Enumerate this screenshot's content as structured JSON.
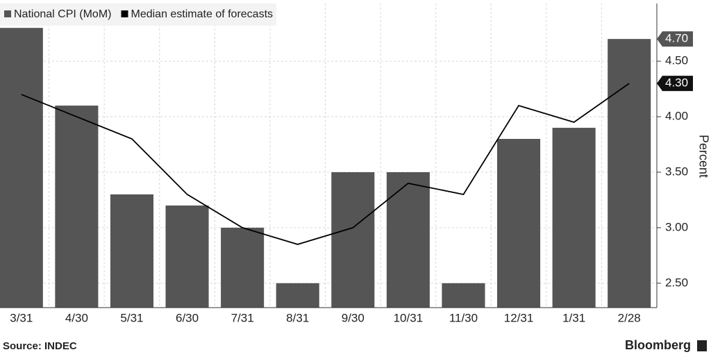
{
  "chart_data": {
    "type": "bar_line",
    "categories": [
      "3/31",
      "4/30",
      "5/31",
      "6/30",
      "7/31",
      "8/31",
      "9/30",
      "10/31",
      "11/30",
      "12/31",
      "1/31",
      "2/28"
    ],
    "series": [
      {
        "name": "National CPI (MoM)",
        "type": "bar",
        "color": "#555555",
        "values": [
          4.8,
          4.1,
          3.3,
          3.2,
          3.0,
          2.5,
          3.5,
          3.5,
          2.5,
          3.8,
          3.9,
          4.7
        ],
        "value_labels": [
          null,
          null,
          null,
          null,
          null,
          null,
          null,
          null,
          null,
          null,
          null,
          "4.70"
        ]
      },
      {
        "name": "Median estimate of forecasts",
        "type": "line",
        "color": "#000000",
        "values": [
          4.2,
          4.0,
          3.8,
          3.3,
          3.0,
          2.85,
          3.0,
          3.4,
          3.3,
          4.1,
          3.95,
          4.3
        ],
        "value_labels": [
          null,
          null,
          null,
          null,
          null,
          null,
          null,
          null,
          null,
          null,
          null,
          "4.30"
        ]
      }
    ],
    "ylabel": "Percent",
    "ylim": [
      2.28,
      5.02
    ],
    "yticks": [
      {
        "value": 2.5,
        "label": "2.50"
      },
      {
        "value": 3.0,
        "label": "3.00"
      },
      {
        "value": 3.5,
        "label": "3.50"
      },
      {
        "value": 4.0,
        "label": "4.00"
      },
      {
        "value": 4.5,
        "label": "4.50"
      }
    ],
    "source": "Source: INDEC",
    "brand": "Bloomberg",
    "grid": true
  }
}
